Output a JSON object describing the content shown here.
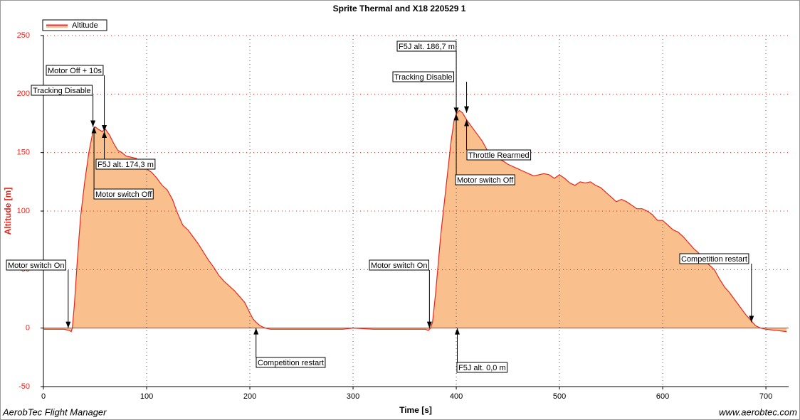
{
  "chart_data": {
    "type": "area",
    "title": "Sprite Thermal and X18 220529 1",
    "x_label": "Time [s]",
    "y_label": "Altitude [m]",
    "footer_left": "AerobTec Flight Manager",
    "footer_right": "www.aerobtec.com",
    "legend": "top-left",
    "grid": true,
    "xlim": [
      0,
      722
    ],
    "ylim": [
      -50,
      250
    ],
    "xticks": [
      0,
      100,
      200,
      300,
      400,
      500,
      600,
      700
    ],
    "yticks": [
      -50,
      0,
      50,
      100,
      150,
      200,
      250
    ],
    "x": [
      0,
      20,
      25,
      27,
      28,
      30,
      33,
      36,
      40,
      44,
      48,
      50,
      53,
      57,
      60,
      64,
      68,
      72,
      76,
      80,
      85,
      90,
      95,
      100,
      105,
      110,
      115,
      120,
      125,
      130,
      135,
      140,
      145,
      150,
      155,
      160,
      165,
      170,
      175,
      180,
      185,
      190,
      195,
      200,
      203,
      206,
      210,
      215,
      220,
      250,
      290,
      300,
      320,
      350,
      370,
      373,
      375,
      377,
      380,
      385,
      390,
      395,
      398,
      400,
      403,
      406,
      410,
      415,
      420,
      425,
      430,
      435,
      440,
      445,
      450,
      455,
      460,
      465,
      470,
      475,
      480,
      485,
      490,
      495,
      500,
      505,
      510,
      515,
      520,
      525,
      530,
      535,
      540,
      545,
      550,
      555,
      560,
      565,
      570,
      575,
      580,
      585,
      590,
      595,
      600,
      605,
      610,
      615,
      620,
      625,
      630,
      635,
      640,
      645,
      650,
      655,
      660,
      665,
      670,
      675,
      680,
      685,
      690,
      695,
      700,
      710,
      720
    ],
    "series": [
      {
        "name": "Altitude",
        "color": "#e8261c",
        "fill": "#f9c08e",
        "values": [
          -1,
          -1,
          -2,
          -3,
          0,
          20,
          60,
          95,
          125,
          150,
          168,
          172,
          170,
          168,
          170,
          165,
          158,
          152,
          150,
          147,
          146,
          145,
          140,
          136,
          133,
          128,
          122,
          118,
          110,
          98,
          88,
          84,
          78,
          72,
          65,
          58,
          52,
          45,
          40,
          36,
          32,
          27,
          22,
          13,
          8,
          5,
          2,
          0,
          -1,
          -1,
          -1,
          0,
          -1,
          -1,
          -1,
          -2,
          0,
          5,
          30,
          80,
          120,
          160,
          178,
          183,
          186,
          184,
          178,
          172,
          166,
          160,
          152,
          148,
          145,
          143,
          140,
          138,
          136,
          134,
          132,
          130,
          131,
          132,
          131,
          128,
          131,
          128,
          124,
          122,
          125,
          124,
          125,
          122,
          120,
          116,
          112,
          108,
          110,
          108,
          105,
          102,
          102,
          100,
          97,
          92,
          92,
          88,
          84,
          82,
          78,
          73,
          68,
          64,
          58,
          54,
          50,
          42,
          35,
          30,
          24,
          18,
          12,
          7,
          2,
          0,
          -1,
          -2,
          -3
        ]
      }
    ],
    "annotations": [
      {
        "text": "Motor switch On",
        "x": 24,
        "y": 0
      },
      {
        "text": "Motor Off + 10s",
        "x": 59,
        "y": 168
      },
      {
        "text": "Tracking Disable",
        "x": 48,
        "y": 172
      },
      {
        "text": "F5J alt. 174,3 m",
        "x": 59,
        "y": 168
      },
      {
        "text": "Motor switch Off",
        "x": 49,
        "y": 172
      },
      {
        "text": "Competition restart",
        "x": 206,
        "y": 0
      },
      {
        "text": "Motor switch On",
        "x": 374,
        "y": 0
      },
      {
        "text": "F5J alt. 186,7 m",
        "x": 400,
        "y": 183
      },
      {
        "text": "Tracking Disable",
        "x": 410,
        "y": 184
      },
      {
        "text": "Throttle Rearmed",
        "x": 410,
        "y": 178
      },
      {
        "text": "Motor switch Off",
        "x": 400,
        "y": 183
      },
      {
        "text": "F5J alt. 0,0 m",
        "x": 401,
        "y": 0
      },
      {
        "text": "Competition restart",
        "x": 686,
        "y": 5
      }
    ]
  }
}
